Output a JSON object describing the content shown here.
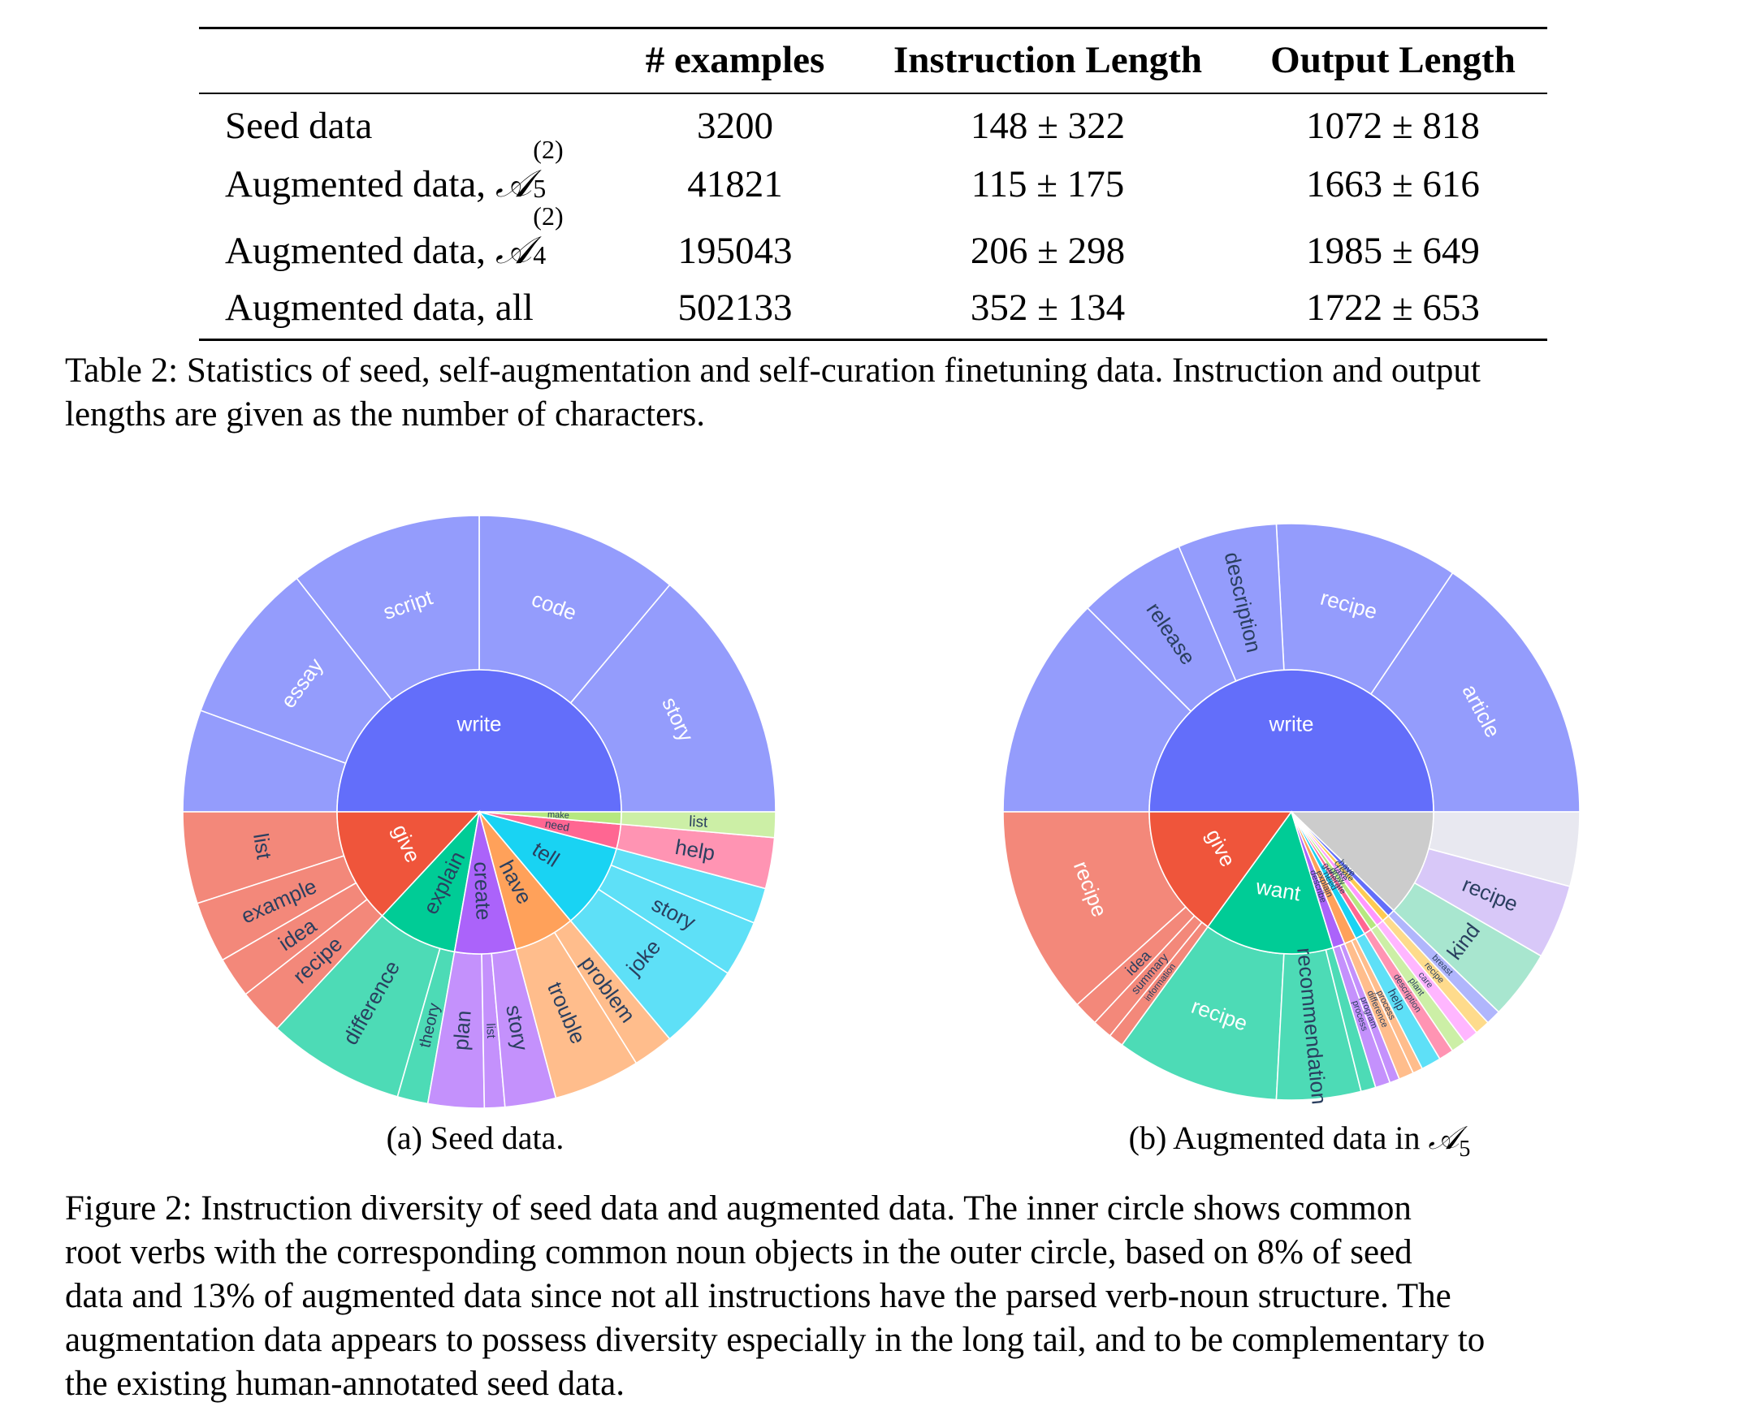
{
  "table": {
    "headers": [
      "",
      "# examples",
      "Instruction Length",
      "Output Length"
    ],
    "rows": [
      {
        "label": "Seed data",
        "math": "",
        "sup": "",
        "sub": "",
        "examples": "3200",
        "instr": "148 ± 322",
        "output": "1072 ± 818"
      },
      {
        "label": "Augmented data, ",
        "math": "𝒜",
        "sup": "(2)",
        "sub": "5",
        "examples": "41821",
        "instr": "115 ± 175",
        "output": "1663 ± 616"
      },
      {
        "label": "Augmented data, ",
        "math": "𝒜",
        "sup": "(2)",
        "sub": "4",
        "examples": "195043",
        "instr": "206 ± 298",
        "output": "1985 ± 649"
      },
      {
        "label": "Augmented data, all",
        "math": "",
        "sup": "",
        "sub": "",
        "examples": "502133",
        "instr": "352 ± 134",
        "output": "1722 ± 653"
      }
    ],
    "caption_lines": [
      "Table 2: Statistics of seed, self-augmentation and self-curation finetuning data. Instruction and output",
      "lengths are given as the number of characters."
    ]
  },
  "figures": {
    "seed": {
      "subcaption": "(a) Seed data.",
      "chart_data": {
        "type": "sunburst",
        "inner": [
          {
            "name": "write",
            "start": 0,
            "end": 180,
            "color": "#636efa"
          },
          {
            "name": "give",
            "start": 180,
            "end": 227,
            "color": "#ef553b"
          },
          {
            "name": "explain",
            "start": 227,
            "end": 260,
            "color": "#00cc96"
          },
          {
            "name": "create",
            "start": 260,
            "end": 285,
            "color": "#ab63fa"
          },
          {
            "name": "have",
            "start": 285,
            "end": 310,
            "color": "#ffa15a"
          },
          {
            "name": "tell",
            "start": 310,
            "end": 345,
            "color": "#19d3f3"
          },
          {
            "name": "need",
            "start": 345,
            "end": 355,
            "color": "#ff6692"
          },
          {
            "name": "make",
            "start": 355,
            "end": 360,
            "color": "#b6e880"
          }
        ],
        "outer": [
          {
            "name": "story",
            "start": 0,
            "end": 50,
            "color": "#949cfc"
          },
          {
            "name": "code",
            "start": 50,
            "end": 90,
            "color": "#949cfc"
          },
          {
            "name": "script",
            "start": 90,
            "end": 128,
            "color": "#949cfc"
          },
          {
            "name": "essay",
            "start": 128,
            "end": 160,
            "color": "#949cfc"
          },
          {
            "name": "",
            "start": 160,
            "end": 180,
            "color": "#949cfc"
          },
          {
            "name": "list",
            "start": 180,
            "end": 198,
            "color": "#f3887a"
          },
          {
            "name": "example",
            "start": 198,
            "end": 210,
            "color": "#f3887a"
          },
          {
            "name": "idea",
            "start": 210,
            "end": 218,
            "color": "#f3887a"
          },
          {
            "name": "recipe",
            "start": 218,
            "end": 227,
            "color": "#f3887a"
          },
          {
            "name": "difference",
            "start": 227,
            "end": 254,
            "color": "#4ddbb6"
          },
          {
            "name": "theory",
            "start": 254,
            "end": 260,
            "color": "#4ddbb6"
          },
          {
            "name": "plan",
            "start": 260,
            "end": 271,
            "color": "#c491fc"
          },
          {
            "name": "list",
            "start": 271,
            "end": 275,
            "color": "#c491fc"
          },
          {
            "name": "story",
            "start": 275,
            "end": 285,
            "color": "#c491fc"
          },
          {
            "name": "trouble",
            "start": 285,
            "end": 302,
            "color": "#ffbd8c"
          },
          {
            "name": "problem",
            "start": 302,
            "end": 310,
            "color": "#ffbd8c"
          },
          {
            "name": "joke",
            "start": 310,
            "end": 327,
            "color": "#5ee0f7"
          },
          {
            "name": "story",
            "start": 327,
            "end": 338,
            "color": "#5ee0f7"
          },
          {
            "name": "",
            "start": 338,
            "end": 345,
            "color": "#5ee0f7"
          },
          {
            "name": "help",
            "start": 345,
            "end": 355,
            "color": "#ff94b3"
          },
          {
            "name": "list",
            "start": 355,
            "end": 360,
            "color": "#ccefa6"
          }
        ]
      }
    },
    "aug": {
      "subcaption_text": "(b) Augmented data in ",
      "subcaption_math": "𝒜",
      "subcaption_sub": "5",
      "chart_data": {
        "type": "sunburst",
        "inner": [
          {
            "name": "write",
            "start": 0,
            "end": 180,
            "color": "#636efa"
          },
          {
            "name": "give",
            "start": 180,
            "end": 234,
            "color": "#ef553b"
          },
          {
            "name": "want",
            "start": 234,
            "end": 287,
            "color": "#00cc96"
          },
          {
            "name": "describe",
            "start": 287,
            "end": 292,
            "color": "#ab63fa"
          },
          {
            "name": "explain",
            "start": 292,
            "end": 297,
            "color": "#ffa15a"
          },
          {
            "name": "need",
            "start": 297,
            "end": 301,
            "color": "#19d3f3"
          },
          {
            "name": "generate",
            "start": 301,
            "end": 304,
            "color": "#ff6692"
          },
          {
            "name": "grow",
            "start": 304,
            "end": 307,
            "color": "#b6e880"
          },
          {
            "name": "take",
            "start": 307,
            "end": 310,
            "color": "#ff97ff"
          },
          {
            "name": "create",
            "start": 310,
            "end": 313,
            "color": "#fecb52"
          },
          {
            "name": "have",
            "start": 313,
            "end": 316,
            "color": "#636efa"
          },
          {
            "name": "",
            "start": 316,
            "end": 360,
            "color": "#cccccc"
          }
        ],
        "outer": [
          {
            "name": "article",
            "start": 0,
            "end": 56,
            "color": "#949cfc"
          },
          {
            "name": "recipe",
            "start": 56,
            "end": 93,
            "color": "#949cfc"
          },
          {
            "name": "description",
            "start": 93,
            "end": 113,
            "color": "#949cfc"
          },
          {
            "name": "release",
            "start": 113,
            "end": 135,
            "color": "#949cfc"
          },
          {
            "name": "",
            "start": 135,
            "end": 180,
            "color": "#949cfc"
          },
          {
            "name": "recipe",
            "start": 180,
            "end": 222,
            "color": "#f3887a"
          },
          {
            "name": "idea",
            "start": 222,
            "end": 227,
            "color": "#f3887a"
          },
          {
            "name": "summary",
            "start": 227,
            "end": 231,
            "color": "#f3887a"
          },
          {
            "name": "information",
            "start": 231,
            "end": 234,
            "color": "#f3887a"
          },
          {
            "name": "recipe",
            "start": 234,
            "end": 267,
            "color": "#4ddbb6"
          },
          {
            "name": "recommendation",
            "start": 267,
            "end": 284,
            "color": "#4ddbb6"
          },
          {
            "name": "",
            "start": 284,
            "end": 287,
            "color": "#4ddbb6"
          },
          {
            "name": "process",
            "start": 287,
            "end": 290,
            "color": "#c491fc"
          },
          {
            "name": "program",
            "start": 290,
            "end": 292,
            "color": "#c491fc"
          },
          {
            "name": "difference",
            "start": 292,
            "end": 295,
            "color": "#ffbd8c"
          },
          {
            "name": "process",
            "start": 295,
            "end": 297,
            "color": "#ffbd8c"
          },
          {
            "name": "help",
            "start": 297,
            "end": 301,
            "color": "#5ee0f7"
          },
          {
            "name": "description",
            "start": 301,
            "end": 304,
            "color": "#ff94b3"
          },
          {
            "name": "plant",
            "start": 304,
            "end": 307,
            "color": "#ccefa6"
          },
          {
            "name": "care",
            "start": 307,
            "end": 310,
            "color": "#ffb6ff"
          },
          {
            "name": "recipe",
            "start": 310,
            "end": 313,
            "color": "#fedb8c"
          },
          {
            "name": "breast",
            "start": 313,
            "end": 316,
            "color": "#b0b6fc"
          },
          {
            "name": "kind",
            "start": 316,
            "end": 330,
            "color": "#a8e6cf"
          },
          {
            "name": "recipe",
            "start": 330,
            "end": 345,
            "color": "#d8c8f8"
          },
          {
            "name": "",
            "start": 345,
            "end": 360,
            "color": "#e8e8f0"
          }
        ]
      }
    },
    "caption_lines": [
      "Figure 2: Instruction diversity of seed data and augmented data. The inner circle shows common",
      "root verbs with the corresponding common noun objects in the outer circle, based on 8% of seed",
      "data and 13% of augmented data since not all instructions have the parsed verb-noun structure. The",
      "augmentation data appears to possess diversity especially in the long tail, and to be complementary to",
      "the existing human-annotated seed data."
    ]
  }
}
